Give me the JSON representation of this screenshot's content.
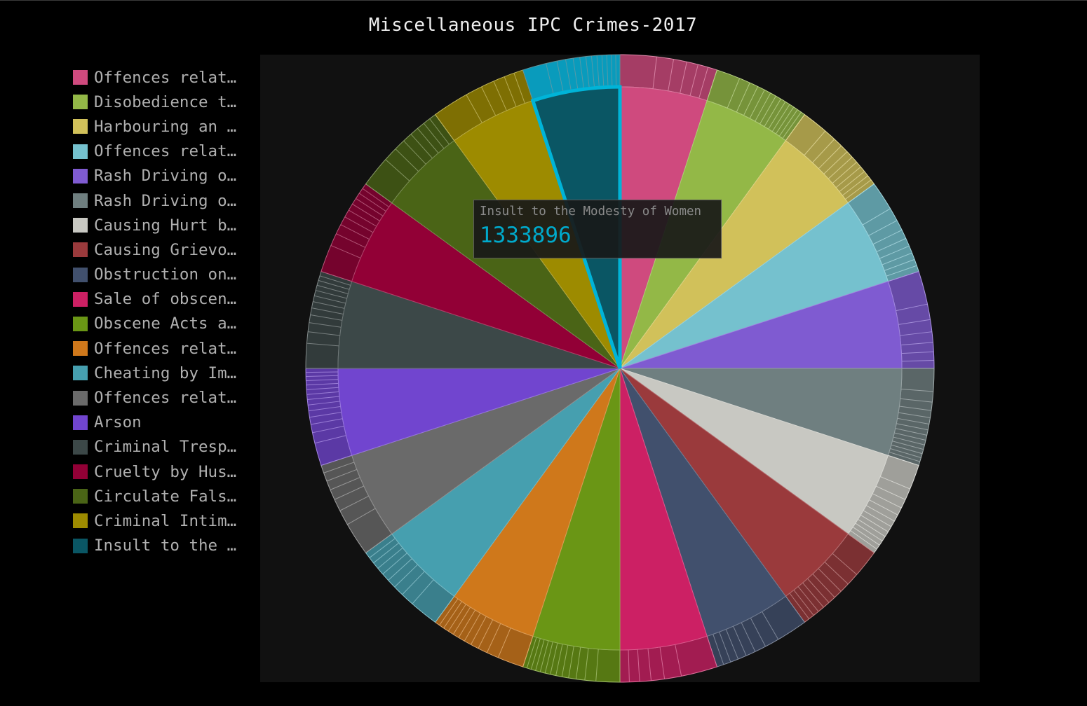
{
  "chart_data": {
    "type": "pie",
    "title": "Miscellaneous IPC Crimes-2017",
    "legend_position": "left",
    "colors": [
      "#cf4a7e",
      "#93b847",
      "#d1c15a",
      "#75c1ce",
      "#7f5bd1",
      "#6f7f80",
      "#c8c8c2",
      "#9a3a3c",
      "#41506d",
      "#cc2064",
      "#6a9615",
      "#cf781b",
      "#469faf",
      "#6a6a6a",
      "#7145cf",
      "#3c4848",
      "#920036",
      "#4a6416",
      "#9d8b00",
      "#0a5664"
    ],
    "series": [
      {
        "name": "Offences relat…"
      },
      {
        "name": "Disobedience t…"
      },
      {
        "name": "Harbouring an …"
      },
      {
        "name": "Offences relat…"
      },
      {
        "name": "Rash Driving o…"
      },
      {
        "name": "Rash Driving o…"
      },
      {
        "name": "Causing Hurt b…"
      },
      {
        "name": "Causing Grievo…"
      },
      {
        "name": "Obstruction on…"
      },
      {
        "name": "Sale of obscen…"
      },
      {
        "name": "Obscene Acts a…"
      },
      {
        "name": "Offences relat…"
      },
      {
        "name": "Cheating by Im…"
      },
      {
        "name": "Offences relat…"
      },
      {
        "name": "Arson"
      },
      {
        "name": "Criminal Tresp…"
      },
      {
        "name": "Cruelty by Hus…"
      },
      {
        "name": "Circulate Fals…"
      },
      {
        "name": "Criminal Intim…"
      },
      {
        "name": "Insult to the …"
      }
    ],
    "approx_equal_slices": true,
    "highlighted_index": 19,
    "tooltip": {
      "label": "Insult to the Modesty of Women",
      "value": "1333896"
    }
  }
}
